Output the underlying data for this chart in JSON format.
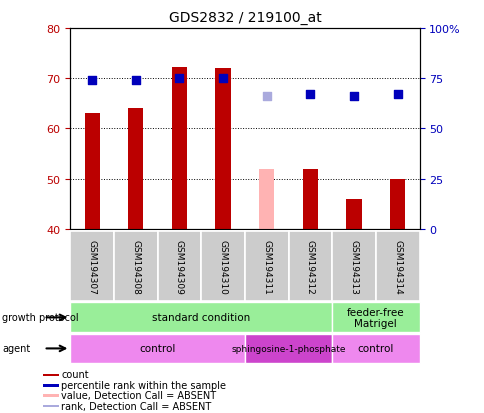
{
  "title": "GDS2832 / 219100_at",
  "samples": [
    "GSM194307",
    "GSM194308",
    "GSM194309",
    "GSM194310",
    "GSM194311",
    "GSM194312",
    "GSM194313",
    "GSM194314"
  ],
  "count_values": [
    63.0,
    64.0,
    72.3,
    72.0,
    null,
    52.0,
    46.0,
    50.0
  ],
  "count_absent": [
    null,
    null,
    null,
    null,
    52.0,
    null,
    null,
    null
  ],
  "rank_values": [
    74.0,
    74.0,
    75.0,
    75.0,
    null,
    67.0,
    66.0,
    67.0
  ],
  "rank_absent": [
    null,
    null,
    null,
    null,
    66.0,
    null,
    null,
    null
  ],
  "ylim_left": [
    40,
    80
  ],
  "ylim_right": [
    0,
    100
  ],
  "yticks_left": [
    40,
    50,
    60,
    70,
    80
  ],
  "yticks_right": [
    0,
    25,
    50,
    75,
    100
  ],
  "ytick_labels_right": [
    "0",
    "25",
    "50",
    "75",
    "100%"
  ],
  "bar_color": "#bb0000",
  "bar_absent_color": "#ffb3b3",
  "dot_color": "#0000bb",
  "dot_absent_color": "#aaaadd",
  "growth_protocol_groups": [
    {
      "label": "standard condition",
      "span": [
        0,
        6
      ],
      "color": "#99ee99"
    },
    {
      "label": "feeder-free\nMatrigel",
      "span": [
        6,
        8
      ],
      "color": "#99ee99"
    }
  ],
  "agent_groups": [
    {
      "label": "control",
      "span": [
        0,
        4
      ],
      "color": "#ee88ee"
    },
    {
      "label": "sphingosine-1-phosphate",
      "span": [
        4,
        6
      ],
      "color": "#cc44cc"
    },
    {
      "label": "control",
      "span": [
        6,
        8
      ],
      "color": "#ee88ee"
    }
  ],
  "legend_items": [
    {
      "label": "count",
      "color": "#bb0000"
    },
    {
      "label": "percentile rank within the sample",
      "color": "#0000bb"
    },
    {
      "label": "value, Detection Call = ABSENT",
      "color": "#ffb3b3"
    },
    {
      "label": "rank, Detection Call = ABSENT",
      "color": "#aaaadd"
    }
  ],
  "bar_width": 0.35,
  "dot_size": 40
}
